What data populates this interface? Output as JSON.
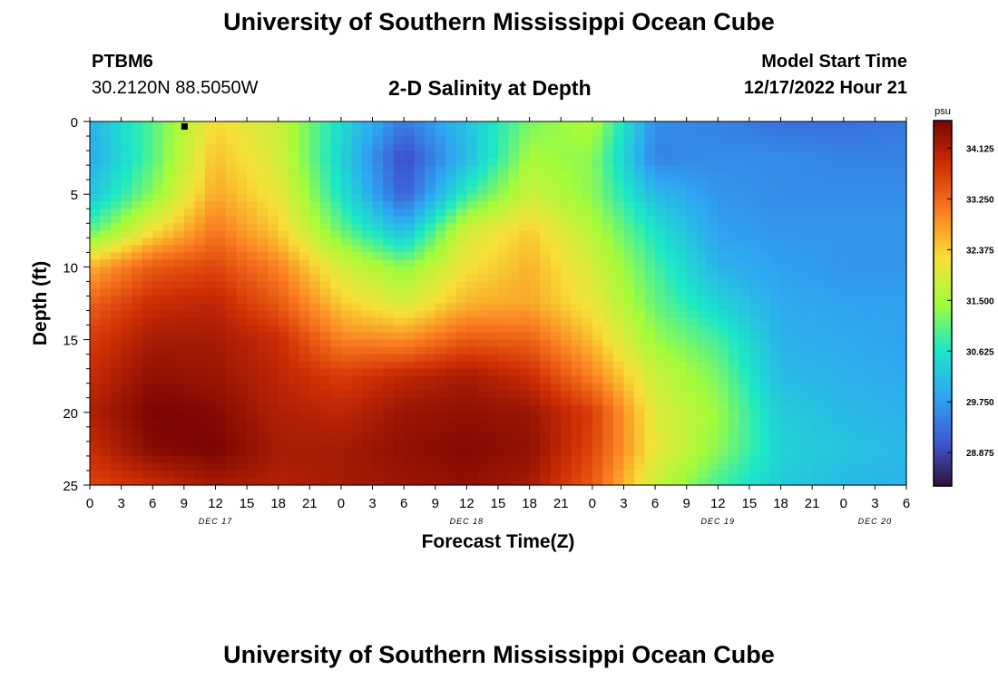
{
  "header": {
    "title": "University of Southern Mississippi Ocean Cube",
    "station_id": "PTBM6",
    "station_location": "30.2120N  88.5050W",
    "plot_title": "2-D Salinity at Depth",
    "model_start_label": "Model Start Time",
    "model_start_value": "12/17/2022 Hour 21"
  },
  "footer": {
    "title": "University of Southern Mississippi Ocean Cube"
  },
  "chart_data": {
    "type": "heatmap",
    "title": "2-D Salinity at Depth",
    "xlabel": "Forecast Time(Z)",
    "ylabel": "Depth (ft)",
    "x_range_hours": [
      0,
      78
    ],
    "y_range_ft": [
      0,
      25
    ],
    "y_inverted": true,
    "x_tick_labels": [
      "0",
      "3",
      "6",
      "9",
      "12",
      "15",
      "18",
      "21",
      "0",
      "3",
      "6",
      "9",
      "12",
      "15",
      "18",
      "21",
      "0",
      "3",
      "6",
      "9",
      "12",
      "15",
      "18",
      "21",
      "0",
      "3",
      "6"
    ],
    "y_ticks": [
      0,
      5,
      10,
      15,
      20,
      25
    ],
    "date_labels": [
      {
        "label": "DEC 17",
        "hour": 12
      },
      {
        "label": "DEC 18",
        "hour": 36
      },
      {
        "label": "DEC 19",
        "hour": 60
      },
      {
        "label": "DEC 20",
        "hour": 75
      }
    ],
    "colorbar": {
      "unit": "psu",
      "min": 28.3,
      "max": 34.6,
      "ticks": [
        "34.125",
        "33.250",
        "32.375",
        "31.500",
        "30.625",
        "29.750",
        "28.875"
      ],
      "tick_values": [
        34.125,
        33.25,
        32.375,
        31.5,
        30.625,
        29.75,
        28.875
      ]
    },
    "colors": {
      "stops": [
        "#30123b",
        "#3e5bd6",
        "#2ea8f2",
        "#1ce8c6",
        "#a4fc3b",
        "#f7e036",
        "#fb7e21",
        "#d23105",
        "#7a0403"
      ]
    },
    "salinity_grid": {
      "time_hours": [
        0,
        6,
        12,
        18,
        24,
        30,
        36,
        42,
        48,
        54,
        60,
        66,
        72,
        78
      ],
      "depth_ft": [
        0,
        2.5,
        5,
        7.5,
        10,
        12.5,
        15,
        17.5,
        20,
        22.5,
        25
      ],
      "values_psu": [
        [
          30.0,
          31.0,
          32.3,
          31.8,
          30.5,
          29.4,
          30.2,
          31.2,
          31.6,
          29.6,
          29.5,
          29.3,
          29.3,
          29.4
        ],
        [
          29.9,
          31.0,
          32.5,
          31.9,
          30.4,
          28.9,
          30.1,
          31.5,
          31.3,
          29.5,
          29.6,
          29.6,
          29.5,
          29.5
        ],
        [
          30.2,
          31.3,
          32.7,
          32.1,
          30.6,
          29.1,
          30.8,
          31.8,
          31.3,
          30.1,
          29.7,
          29.6,
          29.6,
          29.6
        ],
        [
          31.0,
          32.2,
          33.1,
          32.4,
          31.1,
          30.1,
          31.9,
          32.4,
          31.6,
          30.6,
          29.8,
          29.7,
          29.7,
          29.7
        ],
        [
          32.6,
          33.4,
          33.6,
          33.0,
          31.9,
          31.3,
          32.2,
          32.6,
          31.9,
          30.9,
          30.0,
          29.8,
          29.7,
          29.7
        ],
        [
          33.3,
          33.9,
          34.0,
          33.4,
          32.4,
          31.9,
          32.6,
          32.7,
          32.1,
          31.1,
          30.4,
          29.9,
          29.8,
          29.8
        ],
        [
          33.7,
          34.2,
          34.2,
          33.9,
          33.0,
          32.9,
          33.4,
          33.3,
          32.5,
          31.4,
          30.9,
          30.0,
          29.9,
          29.8
        ],
        [
          33.9,
          34.4,
          34.3,
          34.0,
          33.7,
          34.0,
          34.2,
          33.9,
          33.0,
          31.8,
          31.2,
          30.1,
          30.0,
          29.9
        ],
        [
          34.1,
          34.6,
          34.5,
          34.1,
          34.0,
          34.3,
          34.4,
          34.3,
          33.7,
          32.0,
          31.4,
          30.3,
          30.1,
          30.0
        ],
        [
          33.9,
          34.5,
          34.6,
          34.2,
          34.2,
          34.4,
          34.5,
          34.4,
          33.6,
          32.1,
          31.3,
          30.4,
          30.2,
          30.1
        ],
        [
          33.6,
          33.9,
          34.2,
          34.1,
          34.2,
          34.3,
          34.4,
          34.2,
          33.4,
          31.8,
          30.9,
          30.3,
          30.1,
          30.0
        ]
      ]
    }
  }
}
